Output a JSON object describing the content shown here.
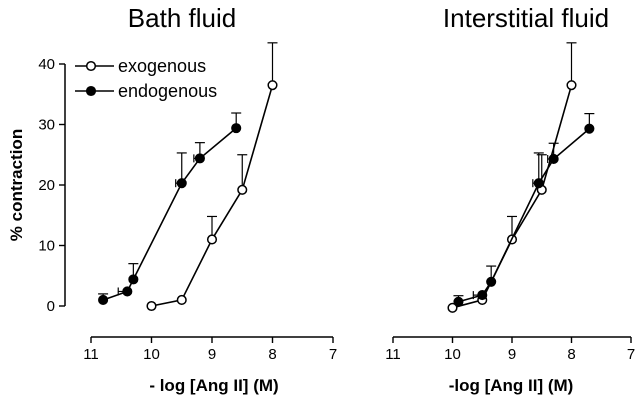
{
  "chart_data": [
    {
      "type": "line",
      "title": "Bath fluid",
      "xlabel": "- log [Ang II] (M)",
      "ylabel": "% contraction",
      "xlim": [
        11,
        7
      ],
      "ylim": [
        0,
        40
      ],
      "x_ticks": [
        "11",
        "10",
        "9",
        "8",
        "7"
      ],
      "y_ticks": [
        "0",
        "10",
        "20",
        "30",
        "40"
      ],
      "legend_position": "top-left",
      "series": [
        {
          "name": "exogenous",
          "marker": "open-circle",
          "x": [
            10.0,
            9.5,
            9.0,
            8.5,
            8.0
          ],
          "y": [
            0.0,
            1.0,
            11.0,
            19.2,
            36.5
          ],
          "y_err": [
            0,
            0,
            3.8,
            5.8,
            7.0
          ],
          "x_err": [
            0,
            0,
            0,
            0,
            0
          ]
        },
        {
          "name": "endogenous",
          "marker": "filled-circle",
          "x": [
            10.8,
            10.4,
            10.3,
            9.5,
            9.2,
            8.6
          ],
          "y": [
            1.0,
            2.4,
            4.4,
            20.3,
            24.4,
            29.4
          ],
          "y_err": [
            1.0,
            0,
            2.6,
            5.0,
            2.6,
            2.5
          ],
          "x_err": [
            0,
            0.15,
            0,
            0.1,
            0.1,
            0
          ]
        }
      ]
    },
    {
      "type": "line",
      "title": "Interstitial fluid",
      "xlabel": "-log [Ang II] (M)",
      "ylabel": "",
      "xlim": [
        11,
        7
      ],
      "ylim": [
        0,
        40
      ],
      "x_ticks": [
        "11",
        "10",
        "9",
        "8",
        "7"
      ],
      "y_ticks": [],
      "series": [
        {
          "name": "exogenous",
          "marker": "open-circle",
          "x": [
            10.0,
            9.5,
            9.0,
            8.5,
            8.0
          ],
          "y": [
            -0.3,
            1.0,
            11.0,
            19.2,
            36.5
          ],
          "y_err": [
            0,
            0,
            3.8,
            5.8,
            7.0
          ],
          "x_err": [
            0,
            0,
            0,
            0,
            0
          ]
        },
        {
          "name": "endogenous",
          "marker": "filled-circle",
          "x": [
            9.9,
            9.5,
            9.35,
            8.55,
            8.3,
            7.7
          ],
          "y": [
            0.7,
            1.8,
            4.0,
            20.3,
            24.3,
            29.3
          ],
          "y_err": [
            1.0,
            0,
            2.6,
            5.0,
            2.6,
            2.5
          ],
          "x_err": [
            0,
            0.15,
            0,
            0.1,
            0.1,
            0
          ]
        }
      ]
    }
  ]
}
